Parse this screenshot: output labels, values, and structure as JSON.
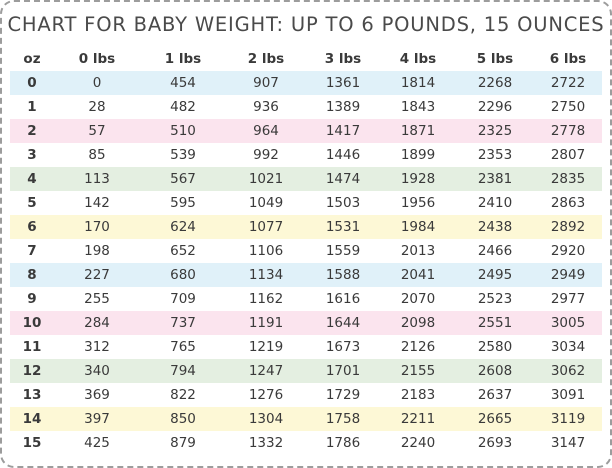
{
  "title": "CHART FOR BABY WEIGHT: UP TO 6 POUNDS, 15 OUNCES",
  "headers": [
    "oz",
    "0 lbs",
    "1 lbs",
    "2 lbs",
    "3 lbs",
    "4 lbs",
    "5 lbs",
    "6 lbs"
  ],
  "row_colors": {
    "0": "#e0f1f9",
    "2": "#fbe4ee",
    "4": "#e4efe1",
    "6": "#fdf8d6",
    "8": "#e0f1f9",
    "10": "#fbe4ee",
    "12": "#e4efe1",
    "14": "#fdf8d6"
  },
  "rows": [
    [
      "0",
      "0",
      "454",
      "907",
      "1361",
      "1814",
      "2268",
      "2722"
    ],
    [
      "1",
      "28",
      "482",
      "936",
      "1389",
      "1843",
      "2296",
      "2750"
    ],
    [
      "2",
      "57",
      "510",
      "964",
      "1417",
      "1871",
      "2325",
      "2778"
    ],
    [
      "3",
      "85",
      "539",
      "992",
      "1446",
      "1899",
      "2353",
      "2807"
    ],
    [
      "4",
      "113",
      "567",
      "1021",
      "1474",
      "1928",
      "2381",
      "2835"
    ],
    [
      "5",
      "142",
      "595",
      "1049",
      "1503",
      "1956",
      "2410",
      "2863"
    ],
    [
      "6",
      "170",
      "624",
      "1077",
      "1531",
      "1984",
      "2438",
      "2892"
    ],
    [
      "7",
      "198",
      "652",
      "1106",
      "1559",
      "2013",
      "2466",
      "2920"
    ],
    [
      "8",
      "227",
      "680",
      "1134",
      "1588",
      "2041",
      "2495",
      "2949"
    ],
    [
      "9",
      "255",
      "709",
      "1162",
      "1616",
      "2070",
      "2523",
      "2977"
    ],
    [
      "10",
      "284",
      "737",
      "1191",
      "1644",
      "2098",
      "2551",
      "3005"
    ],
    [
      "11",
      "312",
      "765",
      "1219",
      "1673",
      "2126",
      "2580",
      "3034"
    ],
    [
      "12",
      "340",
      "794",
      "1247",
      "1701",
      "2155",
      "2608",
      "3062"
    ],
    [
      "13",
      "369",
      "822",
      "1276",
      "1729",
      "2183",
      "2637",
      "3091"
    ],
    [
      "14",
      "397",
      "850",
      "1304",
      "1758",
      "2211",
      "2665",
      "3119"
    ],
    [
      "15",
      "425",
      "879",
      "1332",
      "1786",
      "2240",
      "2693",
      "3147"
    ]
  ]
}
